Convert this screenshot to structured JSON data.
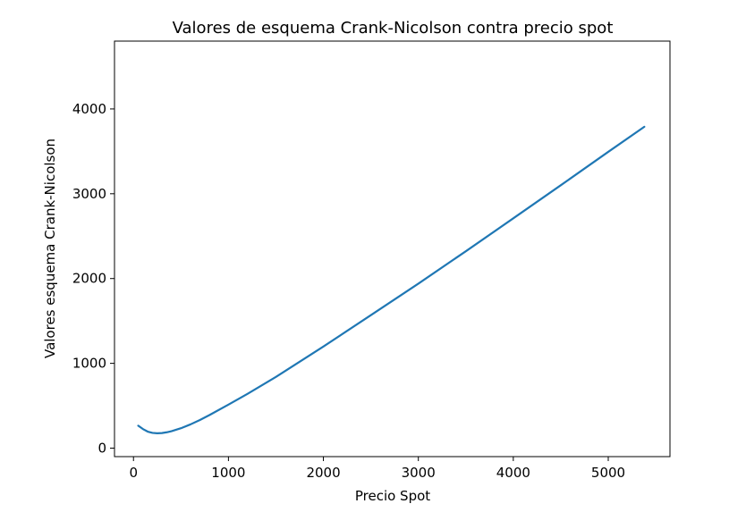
{
  "chart_data": {
    "type": "line",
    "title": "Valores de esquema Crank-Nicolson contra precio spot",
    "xlabel": "Precio Spot",
    "ylabel": "Valores esquema Crank-Nicolson",
    "xlim": [
      -200,
      5650
    ],
    "ylim": [
      -100,
      4800
    ],
    "xticks": [
      0,
      1000,
      2000,
      3000,
      4000,
      5000
    ],
    "xtick_labels": [
      "0",
      "1000",
      "2000",
      "3000",
      "4000",
      "5000"
    ],
    "yticks": [
      0,
      1000,
      2000,
      3000,
      4000
    ],
    "ytick_labels": [
      "0",
      "1000",
      "2000",
      "3000",
      "4000"
    ],
    "grid": false,
    "line_color": "#1f77b4",
    "series": [
      {
        "x": [
          50,
          100,
          150,
          200,
          250,
          300,
          350,
          400,
          500,
          600,
          700,
          800,
          1000,
          1200,
          1500,
          2000,
          2500,
          3000,
          3500,
          4000,
          4500,
          5000,
          5380
        ],
        "y": [
          265,
          225,
          195,
          180,
          175,
          178,
          187,
          200,
          235,
          280,
          332,
          390,
          513,
          640,
          840,
          1198,
          1568,
          1940,
          2322,
          2710,
          3100,
          3494,
          3790
        ]
      }
    ]
  }
}
